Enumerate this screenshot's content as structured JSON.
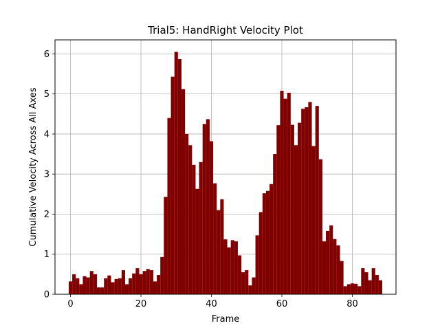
{
  "chart_data": {
    "type": "bar",
    "title": "Trial5: HandRight Velocity Plot",
    "xlabel": "Frame",
    "ylabel": "Cumulative Velocity Across All Axes",
    "xlim": [
      -4.4,
      92.4
    ],
    "ylim": [
      0,
      6.35
    ],
    "xticks": [
      0,
      20,
      40,
      60,
      80
    ],
    "yticks": [
      0,
      1,
      2,
      3,
      4,
      5,
      6
    ],
    "grid": true,
    "bar_color": "#800000",
    "x": [
      0,
      1,
      2,
      3,
      4,
      5,
      6,
      7,
      8,
      9,
      10,
      11,
      12,
      13,
      14,
      15,
      16,
      17,
      18,
      19,
      20,
      21,
      22,
      23,
      24,
      25,
      26,
      27,
      28,
      29,
      30,
      31,
      32,
      33,
      34,
      35,
      36,
      37,
      38,
      39,
      40,
      41,
      42,
      43,
      44,
      45,
      46,
      47,
      48,
      49,
      50,
      51,
      52,
      53,
      54,
      55,
      56,
      57,
      58,
      59,
      60,
      61,
      62,
      63,
      64,
      65,
      66,
      67,
      68,
      69,
      70,
      71,
      72,
      73,
      74,
      75,
      76,
      77,
      78,
      79,
      80,
      81,
      82,
      83,
      84,
      85,
      86,
      87,
      88
    ],
    "values": [
      0.32,
      0.5,
      0.4,
      0.25,
      0.45,
      0.42,
      0.58,
      0.5,
      0.17,
      0.17,
      0.4,
      0.47,
      0.3,
      0.38,
      0.4,
      0.6,
      0.25,
      0.4,
      0.52,
      0.65,
      0.5,
      0.58,
      0.63,
      0.6,
      0.32,
      0.48,
      0.93,
      2.43,
      4.4,
      5.43,
      6.05,
      5.87,
      5.12,
      4.0,
      3.72,
      3.23,
      2.63,
      3.3,
      4.25,
      4.37,
      3.82,
      2.77,
      2.1,
      2.37,
      1.37,
      1.17,
      1.35,
      1.32,
      0.97,
      0.55,
      0.6,
      0.22,
      0.42,
      1.47,
      2.05,
      2.52,
      2.58,
      2.75,
      3.5,
      4.22,
      5.08,
      4.88,
      5.03,
      4.23,
      3.72,
      4.28,
      4.63,
      4.67,
      4.8,
      3.7,
      4.7,
      3.37,
      1.32,
      1.58,
      1.72,
      1.38,
      1.22,
      0.83,
      0.2,
      0.25,
      0.27,
      0.26,
      0.2,
      0.65,
      0.55,
      0.35,
      0.65,
      0.48,
      0.35
    ]
  }
}
